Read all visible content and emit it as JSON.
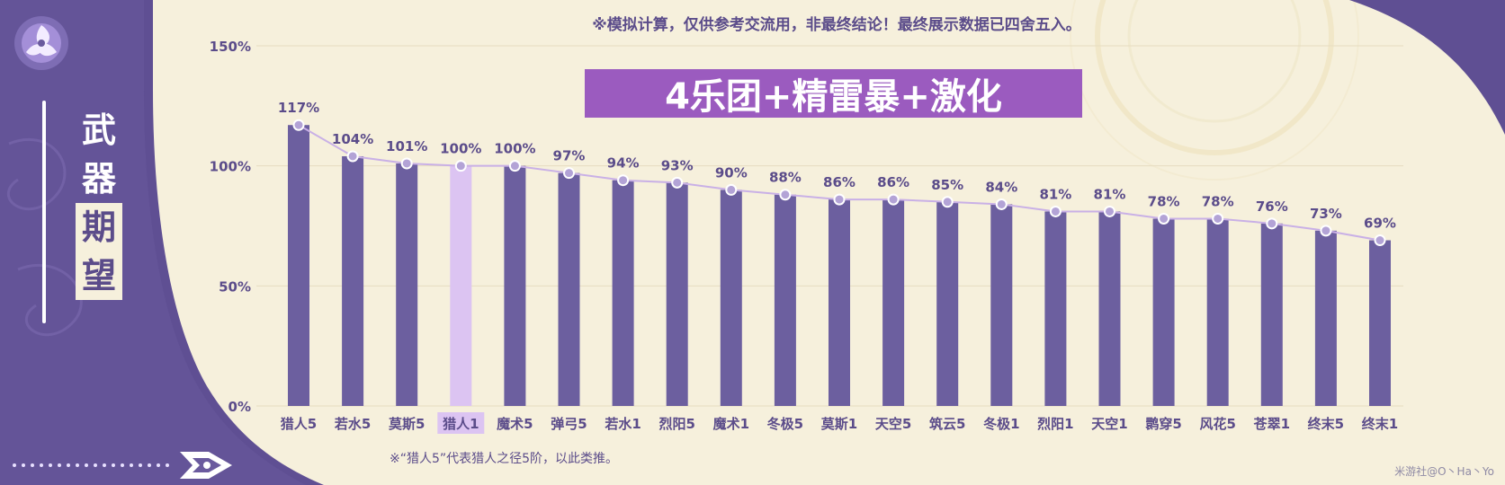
{
  "sidebar": {
    "title_chars": [
      "武",
      "器",
      "期",
      "望"
    ]
  },
  "notice": "※模拟计算，仅供参考交流用，非最终结论！最终展示数据已四舍五入。",
  "footnote": "※“猎人5”代表猎人之径5阶，以此类推。",
  "watermark": "米游社@O丶Ha丶Yo",
  "colors": {
    "bar": "#6c5f9f",
    "highlight_bar": "#dcc4f2",
    "line": "#c9b0e6",
    "dot_fill": "#b3a3d6",
    "sidebar": "#5f4f93",
    "banner": "#9b5bbf",
    "label_text": "#5b4c8a"
  },
  "chart_data": {
    "type": "bar",
    "title": "4乐团+精雷暴+激化",
    "xlabel": "",
    "ylabel": "",
    "ylim": [
      0,
      150
    ],
    "yticks": [
      "0%",
      "50%",
      "100%",
      "150%"
    ],
    "grid": true,
    "highlight_category": "猎人1",
    "categories": [
      "猎人5",
      "若水5",
      "莫斯5",
      "猎人1",
      "魔术5",
      "弹弓5",
      "若水1",
      "烈阳5",
      "魔术1",
      "冬极5",
      "莫斯1",
      "天空5",
      "筑云5",
      "冬极1",
      "烈阳1",
      "天空1",
      "鹮穿5",
      "风花5",
      "苍翠1",
      "终末5",
      "终末1"
    ],
    "values": [
      117,
      104,
      101,
      100,
      100,
      97,
      94,
      93,
      90,
      88,
      86,
      86,
      85,
      84,
      81,
      81,
      78,
      78,
      76,
      73,
      69
    ],
    "value_labels": [
      "117%",
      "104%",
      "101%",
      "100%",
      "100%",
      "97%",
      "94%",
      "93%",
      "90%",
      "88%",
      "86%",
      "86%",
      "85%",
      "84%",
      "81%",
      "81%",
      "78%",
      "78%",
      "76%",
      "73%",
      "69%"
    ],
    "overlay_line": true
  }
}
